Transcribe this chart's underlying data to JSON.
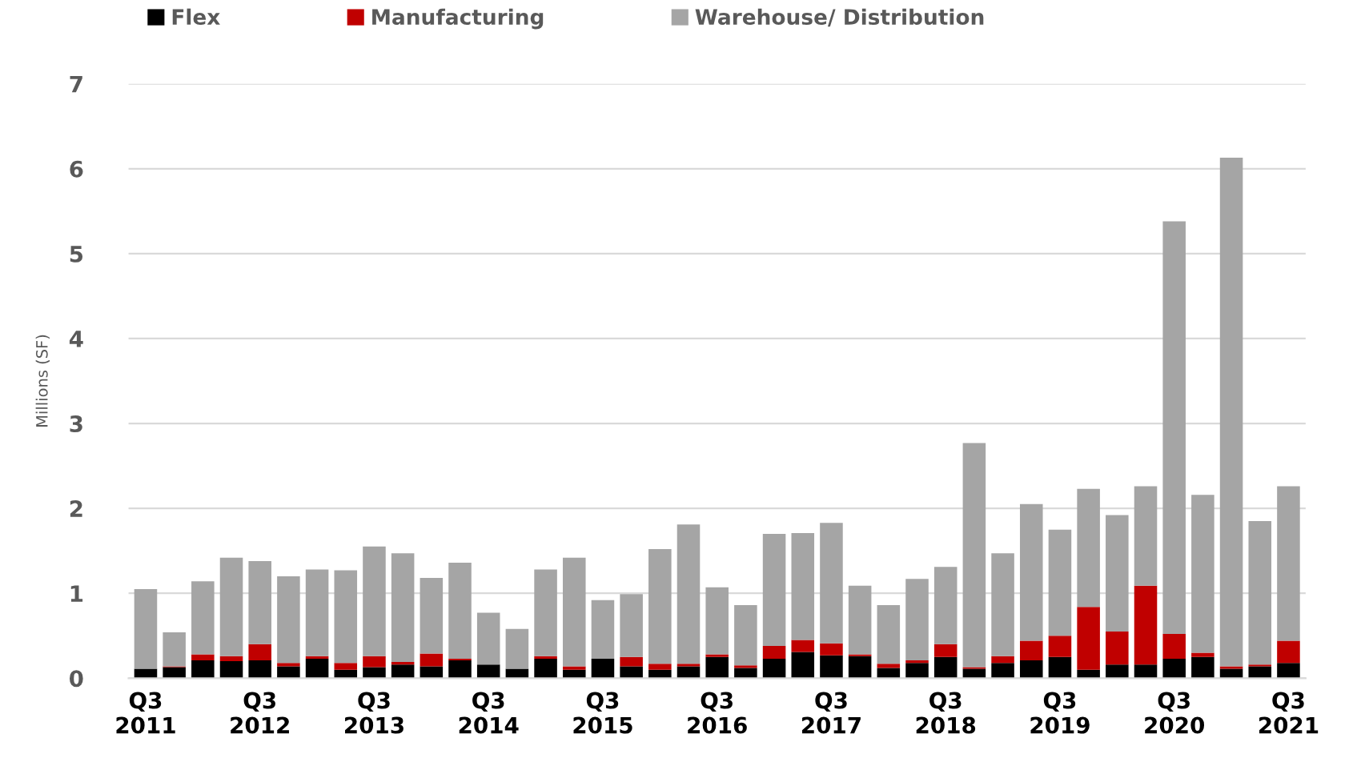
{
  "chart_data": {
    "type": "bar",
    "stacked": true,
    "ylabel": "Millions (SF)",
    "categories": [
      "Q3\n2011",
      null,
      null,
      null,
      "Q3\n2012",
      null,
      null,
      null,
      "Q3\n2013",
      null,
      null,
      null,
      "Q3\n2014",
      null,
      null,
      null,
      "Q3\n2015",
      null,
      null,
      null,
      "Q3\n2016",
      null,
      null,
      null,
      "Q3\n2017",
      null,
      null,
      null,
      "Q3\n2018",
      null,
      null,
      null,
      "Q3\n2019",
      null,
      null,
      null,
      "Q3\n2020",
      null,
      null,
      null,
      "Q3\n2021"
    ],
    "series": [
      {
        "name": "Flex",
        "color": "#000000",
        "values": [
          0.11,
          0.13,
          0.21,
          0.2,
          0.21,
          0.14,
          0.23,
          0.1,
          0.13,
          0.16,
          0.14,
          0.21,
          0.16,
          0.11,
          0.23,
          0.1,
          0.23,
          0.14,
          0.1,
          0.14,
          0.25,
          0.12,
          0.23,
          0.31,
          0.27,
          0.26,
          0.12,
          0.18,
          0.25,
          0.11,
          0.18,
          0.21,
          0.25,
          0.1,
          0.16,
          0.16,
          0.23,
          0.25,
          0.11,
          0.14,
          0.18
        ]
      },
      {
        "name": "Manufacturing",
        "color": "#c00000",
        "values": [
          0,
          0.01,
          0.07,
          0.06,
          0.19,
          0.04,
          0.03,
          0.08,
          0.13,
          0.03,
          0.15,
          0.02,
          0,
          0,
          0.03,
          0.04,
          0,
          0.11,
          0.07,
          0.03,
          0.03,
          0.03,
          0.15,
          0.14,
          0.14,
          0.02,
          0.05,
          0.03,
          0.15,
          0.02,
          0.08,
          0.23,
          0.25,
          0.74,
          0.39,
          0.93,
          0.29,
          0.05,
          0.03,
          0.02,
          0.26
        ]
      },
      {
        "name": "Warehouse/ Distribution",
        "color": "#a5a5a5",
        "values": [
          0.94,
          0.4,
          0.86,
          1.16,
          0.98,
          1.02,
          1.02,
          1.09,
          1.29,
          1.28,
          0.89,
          1.13,
          0.61,
          0.47,
          1.02,
          1.28,
          0.69,
          0.74,
          1.35,
          1.64,
          0.79,
          0.71,
          1.32,
          1.26,
          1.42,
          0.81,
          0.69,
          0.96,
          0.91,
          2.64,
          1.21,
          1.61,
          1.25,
          1.39,
          1.37,
          1.17,
          4.86,
          1.86,
          5.99,
          1.69,
          1.82
        ]
      }
    ],
    "ylim": [
      0,
      7
    ],
    "yticks": [
      0,
      1,
      2,
      3,
      4,
      5,
      6,
      7
    ],
    "grid": "y",
    "legend": "top"
  }
}
